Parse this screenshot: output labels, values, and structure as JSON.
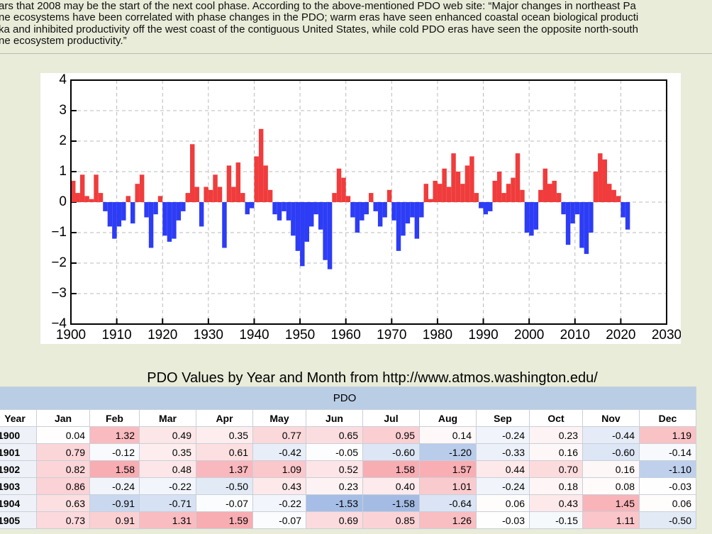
{
  "text": {
    "lines": [
      "ars that 2008 may be the start of the next cool phase. According to the above-mentioned PDO web site: “Major changes in northeast Pa",
      "ne ecosystems have been correlated with phase changes in the PDO; warm eras have seen enhanced coastal ocean biological producti",
      "ka and inhibited productivity off the west coast of the contiguous United States, while cold PDO eras have seen the opposite north-south",
      "ne ecosystem productivity.”"
    ]
  },
  "chart_data": {
    "type": "bar",
    "x": [
      1900,
      1901,
      1902,
      1903,
      1904,
      1905,
      1906,
      1907,
      1908,
      1909,
      1910,
      1911,
      1912,
      1913,
      1914,
      1915,
      1916,
      1917,
      1918,
      1919,
      1920,
      1921,
      1922,
      1923,
      1924,
      1925,
      1926,
      1927,
      1928,
      1929,
      1930,
      1931,
      1932,
      1933,
      1934,
      1935,
      1936,
      1937,
      1938,
      1939,
      1940,
      1941,
      1942,
      1943,
      1944,
      1945,
      1946,
      1947,
      1948,
      1949,
      1950,
      1951,
      1952,
      1953,
      1954,
      1955,
      1956,
      1957,
      1958,
      1959,
      1960,
      1961,
      1962,
      1963,
      1964,
      1965,
      1966,
      1967,
      1968,
      1969,
      1970,
      1971,
      1972,
      1973,
      1974,
      1975,
      1976,
      1977,
      1978,
      1979,
      1980,
      1981,
      1982,
      1983,
      1984,
      1985,
      1986,
      1987,
      1988,
      1989,
      1990,
      1991,
      1992,
      1993,
      1994,
      1995,
      1996,
      1997,
      1998,
      1999,
      2000,
      2001,
      2002,
      2003,
      2004,
      2005,
      2006,
      2007,
      2008,
      2009,
      2010,
      2011,
      2012,
      2013,
      2014,
      2015,
      2016,
      2017,
      2018,
      2019,
      2020,
      2021
    ],
    "values": [
      0.7,
      0.3,
      0.9,
      0.2,
      0.1,
      0.9,
      0.3,
      -0.3,
      -0.8,
      -1.2,
      -0.8,
      -0.6,
      0.2,
      -0.7,
      0.6,
      0.9,
      -0.5,
      -1.5,
      -0.4,
      0.2,
      -1.1,
      -1.3,
      -1.2,
      -0.6,
      -0.3,
      0.3,
      1.9,
      0.5,
      -0.8,
      0.5,
      0.4,
      0.9,
      0.5,
      -1.5,
      1.2,
      0.5,
      1.3,
      0.3,
      -0.4,
      -0.2,
      1.5,
      2.4,
      1.2,
      0.4,
      -0.4,
      -0.6,
      -0.3,
      -0.6,
      -1.1,
      -1.6,
      -2.1,
      -1.3,
      -0.8,
      -0.4,
      -0.9,
      -1.9,
      -2.2,
      0.3,
      1.1,
      0.8,
      0.2,
      -0.5,
      -1.0,
      -0.6,
      -0.4,
      0.3,
      -0.3,
      -0.8,
      -0.5,
      0.4,
      -0.6,
      -1.6,
      -1.1,
      -0.7,
      -0.5,
      -1.2,
      -0.5,
      0.6,
      0.1,
      0.7,
      0.6,
      1.1,
      0.5,
      1.6,
      1.0,
      0.6,
      1.2,
      1.5,
      0.3,
      -0.2,
      -0.4,
      -0.3,
      0.7,
      1.0,
      0.3,
      0.6,
      0.8,
      1.6,
      0.4,
      -1.0,
      -1.1,
      -0.9,
      0.4,
      1.1,
      0.6,
      0.7,
      0.3,
      -0.4,
      -1.4,
      -0.7,
      -0.4,
      -1.5,
      -1.7,
      -1.0,
      1.0,
      1.6,
      1.4,
      0.6,
      0.4,
      0.2,
      -0.5,
      -0.9
    ],
    "positive_color": "#f03c3c",
    "negative_color": "#2d3cf5",
    "xlim": [
      1900,
      2030
    ],
    "xticks": [
      1900,
      1910,
      1920,
      1930,
      1940,
      1950,
      1960,
      1970,
      1980,
      1990,
      2000,
      2010,
      2020,
      2030
    ],
    "ylim": [
      -4,
      4
    ],
    "yticks": [
      {
        "value": -4,
        "label": "−4"
      },
      {
        "value": -3,
        "label": "−3"
      },
      {
        "value": -2,
        "label": "−2"
      },
      {
        "value": -1,
        "label": "−1"
      },
      0,
      1,
      2,
      3,
      4
    ],
    "grid": true
  },
  "caption": "PDO Values by Year and Month from http://www.atmos.washington.edu/",
  "table": {
    "title": "PDO",
    "columns": [
      "Year",
      "Jan",
      "Feb",
      "Mar",
      "Apr",
      "May",
      "Jun",
      "Jul",
      "Aug",
      "Sep",
      "Oct",
      "Nov",
      "Dec"
    ],
    "rows": [
      [
        "1900",
        "0.04",
        "1.32",
        "0.49",
        "0.35",
        "0.77",
        "0.65",
        "0.95",
        "0.14",
        "-0.24",
        "0.23",
        "-0.44",
        "1.19"
      ],
      [
        "1901",
        "0.79",
        "-0.12",
        "0.35",
        "0.61",
        "-0.42",
        "-0.05",
        "-0.60",
        "-1.20",
        "-0.33",
        "0.16",
        "-0.60",
        "-0.14"
      ],
      [
        "1902",
        "0.82",
        "1.58",
        "0.48",
        "1.37",
        "1.09",
        "0.52",
        "1.58",
        "1.57",
        "0.44",
        "0.70",
        "0.16",
        "-1.10"
      ],
      [
        "1903",
        "0.86",
        "-0.24",
        "-0.22",
        "-0.50",
        "0.43",
        "0.23",
        "0.40",
        "1.01",
        "-0.24",
        "0.18",
        "0.08",
        "-0.03"
      ],
      [
        "1904",
        "0.63",
        "-0.91",
        "-0.71",
        "-0.07",
        "-0.22",
        "-1.53",
        "-1.58",
        "-0.64",
        "0.06",
        "0.43",
        "1.45",
        "0.06"
      ],
      [
        "1905",
        "0.73",
        "0.91",
        "1.31",
        "1.59",
        "-0.07",
        "0.69",
        "0.85",
        "1.26",
        "-0.03",
        "-0.15",
        "1.11",
        "-0.50"
      ]
    ]
  }
}
